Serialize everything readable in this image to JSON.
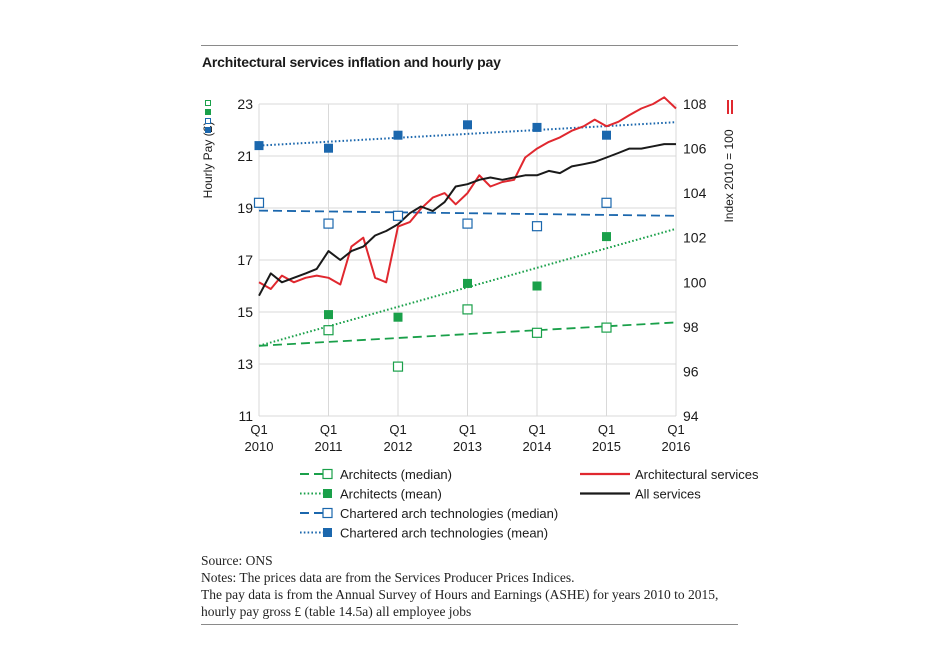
{
  "chart_data": {
    "type": "line",
    "title": "Architectural services inflation and hourly pay",
    "left_axis": {
      "label": "Hourly Pay (£)",
      "range": [
        11,
        23
      ],
      "ticks": [
        "23",
        "21",
        "19",
        "17",
        "15",
        "13",
        "11"
      ]
    },
    "right_axis": {
      "label": "Index 2010 = 100",
      "range": [
        94,
        108
      ],
      "ticks": [
        "108",
        "106",
        "104",
        "102",
        "100",
        "98",
        "96",
        "94"
      ]
    },
    "x_axis": {
      "range": [
        2010,
        2016
      ],
      "ticks": [
        {
          "top": "Q1",
          "bottom": "2010",
          "x": 2010
        },
        {
          "top": "Q1",
          "bottom": "2011",
          "x": 2011
        },
        {
          "top": "Q1",
          "bottom": "2012",
          "x": 2012
        },
        {
          "top": "Q1",
          "bottom": "2013",
          "x": 2013
        },
        {
          "top": "Q1",
          "bottom": "2014",
          "x": 2014
        },
        {
          "top": "Q1",
          "bottom": "2015",
          "x": 2015
        },
        {
          "top": "Q1",
          "bottom": "2016",
          "x": 2016
        }
      ]
    },
    "grid": true,
    "colors": {
      "green": "#1aa04a",
      "blue": "#1b67ad",
      "red": "#e0282f",
      "black": "#1a1a1a",
      "grid": "#d9d9d9"
    },
    "index_series": [
      {
        "name": "Architectural services",
        "color": "#e0282f",
        "axis": "right",
        "x": [
          2010,
          2010.17,
          2010.33,
          2010.5,
          2010.67,
          2010.83,
          2011,
          2011.17,
          2011.33,
          2011.5,
          2011.67,
          2011.83,
          2012,
          2012.17,
          2012.33,
          2012.5,
          2012.67,
          2012.83,
          2013,
          2013.17,
          2013.33,
          2013.5,
          2013.67,
          2013.83,
          2014,
          2014.17,
          2014.33,
          2014.5,
          2014.67,
          2014.83,
          2015,
          2015.17,
          2015.33,
          2015.5,
          2015.67,
          2015.83,
          2016
        ],
        "y": [
          100.0,
          99.7,
          100.3,
          100.0,
          100.2,
          100.3,
          100.2,
          99.9,
          101.6,
          102.0,
          100.2,
          100.0,
          102.5,
          102.7,
          103.3,
          103.8,
          104.0,
          103.5,
          104.0,
          104.8,
          104.3,
          104.5,
          104.6,
          105.6,
          106.0,
          106.3,
          106.5,
          106.8,
          107.0,
          107.3,
          107.0,
          107.2,
          107.5,
          107.8,
          108.0,
          108.3,
          107.8
        ]
      },
      {
        "name": "All services",
        "color": "#1a1a1a",
        "axis": "right",
        "x": [
          2010,
          2010.17,
          2010.33,
          2010.5,
          2010.67,
          2010.83,
          2011,
          2011.17,
          2011.33,
          2011.5,
          2011.67,
          2011.83,
          2012,
          2012.17,
          2012.33,
          2012.5,
          2012.67,
          2012.83,
          2013,
          2013.17,
          2013.33,
          2013.5,
          2013.67,
          2013.83,
          2014,
          2014.17,
          2014.33,
          2014.5,
          2014.67,
          2014.83,
          2015,
          2015.17,
          2015.33,
          2015.5,
          2015.67,
          2015.83,
          2016
        ],
        "y": [
          99.4,
          100.4,
          100.0,
          100.2,
          100.4,
          100.6,
          101.4,
          101.0,
          101.4,
          101.6,
          102.1,
          102.3,
          102.6,
          103.1,
          103.4,
          103.2,
          103.6,
          104.3,
          104.4,
          104.6,
          104.7,
          104.6,
          104.7,
          104.8,
          104.8,
          105.0,
          104.9,
          105.2,
          105.3,
          105.4,
          105.6,
          105.8,
          106.0,
          106.0,
          106.1,
          106.2,
          106.2
        ]
      }
    ],
    "pay_points": [
      {
        "name": "Architects (median)",
        "color": "#1aa04a",
        "filled": false,
        "x": [
          2011,
          2012,
          2013,
          2014,
          2015
        ],
        "y": [
          14.3,
          12.9,
          15.1,
          14.2,
          14.4
        ]
      },
      {
        "name": "Architects (mean)",
        "color": "#1aa04a",
        "filled": true,
        "x": [
          2011,
          2012,
          2013,
          2014,
          2015
        ],
        "y": [
          14.9,
          14.8,
          16.1,
          16.0,
          17.9
        ]
      },
      {
        "name": "Chartered arch technologies (median)",
        "color": "#1b67ad",
        "filled": false,
        "x": [
          2010,
          2011,
          2012,
          2013,
          2014,
          2015
        ],
        "y": [
          19.2,
          18.4,
          18.7,
          18.4,
          18.3,
          19.2
        ]
      },
      {
        "name": "Chartered arch technologies (mean)",
        "color": "#1b67ad",
        "filled": true,
        "x": [
          2010,
          2011,
          2012,
          2013,
          2014,
          2015
        ],
        "y": [
          21.4,
          21.3,
          21.8,
          22.2,
          22.1,
          21.8
        ]
      }
    ],
    "trend_lines": [
      {
        "name": "Architects (median)",
        "color": "#1aa04a",
        "style": "dashed",
        "x": [
          2010,
          2016
        ],
        "y": [
          13.7,
          14.6
        ]
      },
      {
        "name": "Architects (mean)",
        "color": "#1aa04a",
        "style": "dotted",
        "x": [
          2010,
          2016
        ],
        "y": [
          13.7,
          18.2
        ]
      },
      {
        "name": "Chartered arch technologies (median)",
        "color": "#1b67ad",
        "style": "dashed",
        "x": [
          2010,
          2016
        ],
        "y": [
          18.9,
          18.7
        ]
      },
      {
        "name": "Chartered arch technologies (mean)",
        "color": "#1b67ad",
        "style": "dotted",
        "x": [
          2010,
          2016
        ],
        "y": [
          21.4,
          22.3
        ]
      }
    ],
    "legend": {
      "placement": "bottom",
      "left": [
        {
          "label": "Architects (median)",
          "color": "#1aa04a",
          "line": "dashed",
          "marker": "open"
        },
        {
          "label": "Architects (mean)",
          "color": "#1aa04a",
          "line": "dotted",
          "marker": "filled"
        },
        {
          "label": "Chartered arch technologies (median)",
          "color": "#1b67ad",
          "line": "dashed",
          "marker": "open"
        },
        {
          "label": "Chartered arch technologies (mean)",
          "color": "#1b67ad",
          "line": "dotted",
          "marker": "filled"
        }
      ],
      "right": [
        {
          "label": "Architectural services",
          "color": "#e0282f"
        },
        {
          "label": "All services",
          "color": "#1a1a1a"
        }
      ]
    }
  },
  "notes": {
    "source": "Source: ONS",
    "line1": "Notes: The prices data are from the Services Producer Prices Indices.",
    "line2": "The pay data is from the Annual Survey of Hours and Earnings (ASHE) for years 2010 to 2015,",
    "line3": "hourly pay gross £ (table 14.5a) all employee jobs"
  }
}
